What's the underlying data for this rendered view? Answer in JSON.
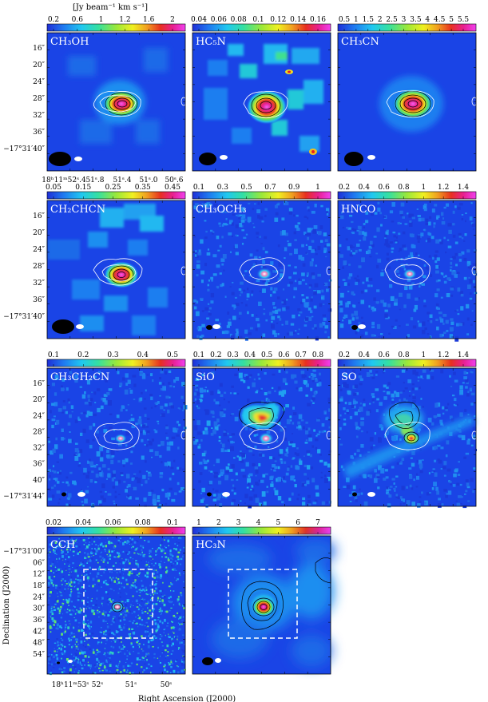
{
  "colorbar_unit": "[Jy beam⁻¹ km s⁻¹]",
  "y_axis_label": "Declination (J2000)",
  "x_axis_label": "Right Ascension (J2000)",
  "colors": {
    "map_background": "#1a44e6",
    "colormap": [
      "#1f2fd8",
      "#1f7af0",
      "#20c8f0",
      "#35e0a0",
      "#9ae83a",
      "#f0f020",
      "#f0a020",
      "#e83020",
      "#e82090",
      "#f040f0"
    ]
  },
  "dec_ticks_rows_1_2": [
    "16″",
    "20″",
    "24″",
    "28″",
    "32″",
    "36″",
    "−17°31′40″"
  ],
  "dec_ticks_row_3": [
    "16″",
    "20″",
    "24″",
    "28″",
    "32″",
    "36″",
    "40″",
    "−17°31′44″"
  ],
  "dec_ticks_row_4": [
    "−17°31′00″",
    "06″",
    "12″",
    "18″",
    "24″",
    "30″",
    "36″",
    "42″",
    "48″",
    "54″"
  ],
  "ra_ticks_top": [
    "18ʰ11ᵐ52ˢ.4",
    "51ˢ.8",
    "51ˢ.4",
    "51ˢ.0",
    "50ˢ.6"
  ],
  "ra_ticks_bottom": [
    "18ʰ11ᵐ53ˢ",
    "52ˢ",
    "51ˢ",
    "50ˢ"
  ],
  "panels": [
    {
      "id": "ch3oh",
      "label": "CH₃OH",
      "cbar": [
        "0.2",
        "0.6",
        "1",
        "1.2",
        "1.6",
        "2"
      ]
    },
    {
      "id": "hc5n",
      "label": "HC₅N",
      "cbar": [
        "0.04",
        "0.06",
        "0.08",
        "0.1",
        "0.12",
        "0.14",
        "0.16"
      ]
    },
    {
      "id": "ch3cn",
      "label": "CH₃CN",
      "cbar": [
        "0.5",
        "1",
        "1.5",
        "2",
        "2.5",
        "3",
        "3.5",
        "4",
        "4.5",
        "5",
        "5.5"
      ]
    },
    {
      "id": "ch2chcn",
      "label": "CH₂CHCN",
      "cbar": [
        "0.05",
        "0.15",
        "0.25",
        "0.35",
        "0.45"
      ]
    },
    {
      "id": "ch3och3",
      "label": "CH₃OCH₃",
      "cbar": [
        "0.1",
        "0.3",
        "0.5",
        "0.7",
        "0.9",
        "1"
      ]
    },
    {
      "id": "hnco",
      "label": "HNCO",
      "cbar": [
        "0.2",
        "0.4",
        "0.6",
        "0.8",
        "1",
        "1.2",
        "1.4"
      ]
    },
    {
      "id": "ch3ch2cn",
      "label": "CH₃CH₂CN",
      "cbar": [
        "0.1",
        "0.2",
        "0.3",
        "0.4",
        "0.5"
      ]
    },
    {
      "id": "sio",
      "label": "SiO",
      "cbar": [
        "0.1",
        "0.2",
        "0.3",
        "0.4",
        "0.5",
        "0.6",
        "0.7",
        "0.8"
      ]
    },
    {
      "id": "so",
      "label": "SO",
      "cbar": [
        "0.2",
        "0.4",
        "0.6",
        "0.8",
        "1",
        "1.2",
        "1.4"
      ]
    },
    {
      "id": "cch",
      "label": "CCH",
      "cbar": [
        "0.02",
        "0.04",
        "0.06",
        "0.08",
        "0.1"
      ]
    },
    {
      "id": "hc3n",
      "label": "HC₃N",
      "cbar": [
        "1",
        "2",
        "3",
        "4",
        "5",
        "6",
        "7"
      ]
    }
  ]
}
